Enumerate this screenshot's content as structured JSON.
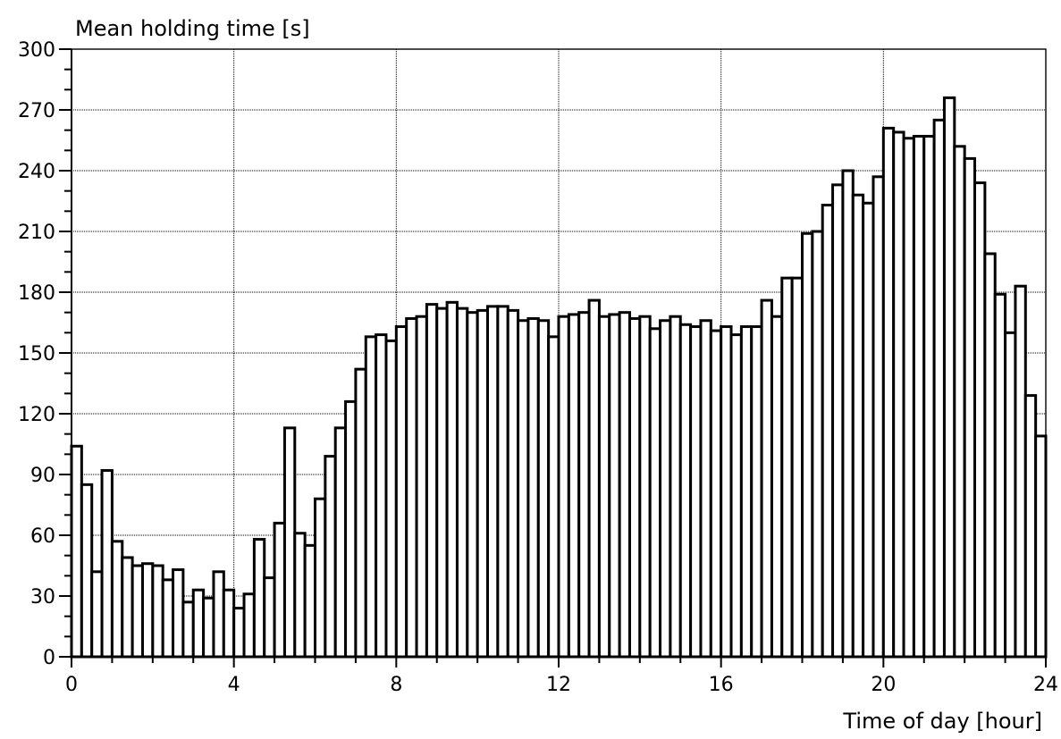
{
  "chart_data": {
    "type": "bar",
    "ylabel": "Mean holding time [s]",
    "xlabel": "Time of day [hour]",
    "xlim": [
      0,
      24
    ],
    "ylim": [
      0,
      300
    ],
    "x_ticks": [
      0,
      4,
      8,
      12,
      16,
      20,
      24
    ],
    "y_ticks": [
      0,
      30,
      60,
      90,
      120,
      150,
      180,
      210,
      240,
      270,
      300
    ],
    "grid": true,
    "bin_width_hours": 0.25,
    "x": [
      0,
      0.25,
      0.5,
      0.75,
      1,
      1.25,
      1.5,
      1.75,
      2,
      2.25,
      2.5,
      2.75,
      3,
      3.25,
      3.5,
      3.75,
      4,
      4.25,
      4.5,
      4.75,
      5,
      5.25,
      5.5,
      5.75,
      6,
      6.25,
      6.5,
      6.75,
      7,
      7.25,
      7.5,
      7.75,
      8,
      8.25,
      8.5,
      8.75,
      9,
      9.25,
      9.5,
      9.75,
      10,
      10.25,
      10.5,
      10.75,
      11,
      11.25,
      11.5,
      11.75,
      12,
      12.25,
      12.5,
      12.75,
      13,
      13.25,
      13.5,
      13.75,
      14,
      14.25,
      14.5,
      14.75,
      15,
      15.25,
      15.5,
      15.75,
      16,
      16.25,
      16.5,
      16.75,
      17,
      17.25,
      17.5,
      17.75,
      18,
      18.25,
      18.5,
      18.75,
      19,
      19.25,
      19.5,
      19.75,
      20,
      20.25,
      20.5,
      20.75,
      21,
      21.25,
      21.5,
      21.75,
      22,
      22.25,
      22.5,
      22.75,
      23,
      23.25,
      23.5,
      23.75
    ],
    "values": [
      104,
      85,
      42,
      92,
      57,
      49,
      45,
      46,
      45,
      38,
      43,
      27,
      33,
      29,
      42,
      33,
      24,
      31,
      58,
      39,
      66,
      113,
      61,
      55,
      78,
      99,
      113,
      126,
      142,
      158,
      159,
      156,
      163,
      167,
      168,
      174,
      172,
      175,
      172,
      170,
      171,
      173,
      173,
      171,
      166,
      167,
      166,
      158,
      168,
      169,
      170,
      176,
      168,
      169,
      170,
      167,
      168,
      162,
      166,
      168,
      164,
      163,
      166,
      161,
      163,
      159,
      163,
      163,
      176,
      168,
      187,
      187,
      209,
      210,
      223,
      233,
      240,
      228,
      224,
      237,
      261,
      259,
      256,
      257,
      257,
      265,
      276,
      252,
      246,
      234,
      199,
      179,
      160,
      183,
      129,
      109
    ]
  }
}
